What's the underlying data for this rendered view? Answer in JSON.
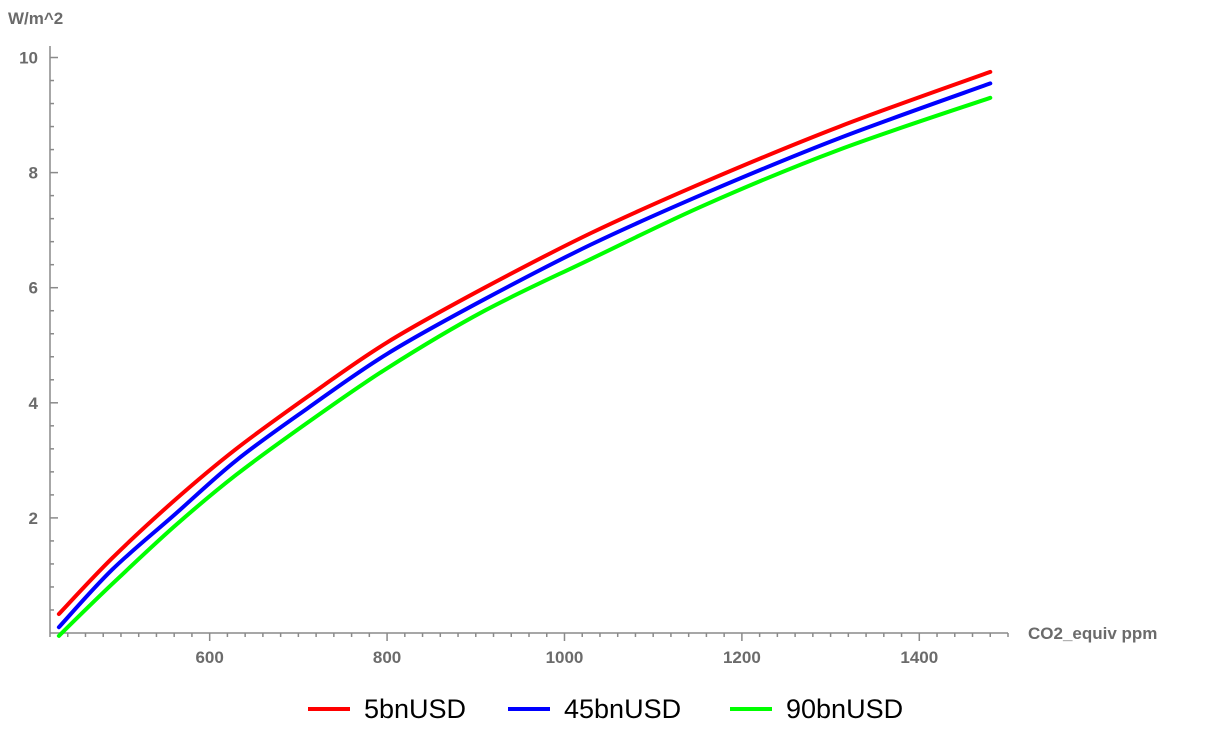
{
  "chart_data": {
    "type": "line",
    "xlabel": "CO2_equiv ppm",
    "ylabel": "W/m^2",
    "xlim": [
      420,
      1500
    ],
    "ylim": [
      0,
      10.2
    ],
    "xticks": [
      600,
      800,
      1000,
      1200,
      1400
    ],
    "yticks": [
      2,
      4,
      6,
      8,
      10
    ],
    "x_minor_step": 20,
    "y_minor_step": 0.4,
    "legend_position": "bottom",
    "series": [
      {
        "name": "5bnUSD",
        "color": "#ff0000",
        "x": [
          430,
          490,
          560,
          630,
          710,
          800,
          910,
          1030,
          1160,
          1310,
          1480
        ],
        "y": [
          0.33,
          1.3,
          2.3,
          3.2,
          4.1,
          5.05,
          6.0,
          6.95,
          7.85,
          8.8,
          9.75
        ]
      },
      {
        "name": "45bnUSD",
        "color": "#0000ff",
        "x": [
          430,
          490,
          560,
          630,
          710,
          800,
          910,
          1030,
          1160,
          1310,
          1480
        ],
        "y": [
          0.1,
          1.1,
          2.05,
          3.0,
          3.9,
          4.85,
          5.8,
          6.75,
          7.65,
          8.6,
          9.55
        ]
      },
      {
        "name": "90bnUSD",
        "color": "#00ff00",
        "x": [
          430,
          490,
          560,
          630,
          710,
          800,
          910,
          1030,
          1160,
          1310,
          1480
        ],
        "y": [
          -0.05,
          0.85,
          1.85,
          2.75,
          3.65,
          4.6,
          5.6,
          6.5,
          7.45,
          8.4,
          9.3
        ]
      }
    ]
  }
}
